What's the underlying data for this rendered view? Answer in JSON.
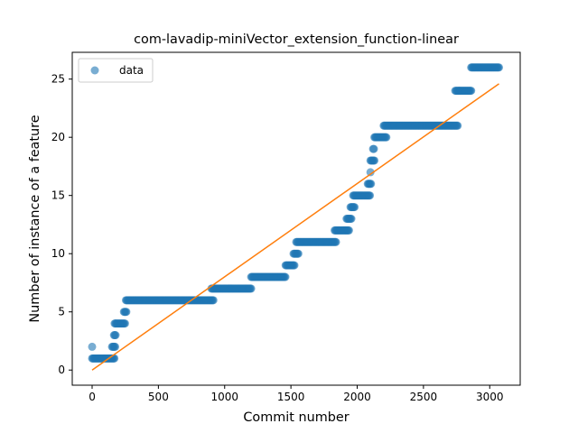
{
  "chart_data": {
    "type": "scatter",
    "title": "com-lavadip-miniVector_extension_function-linear",
    "xlabel": "Commit number",
    "ylabel": "Number of instance of a feature",
    "xlim": [
      -150,
      3230
    ],
    "ylim": [
      -1.3,
      27.3
    ],
    "xticks": [
      0,
      500,
      1000,
      1500,
      2000,
      2500,
      3000
    ],
    "yticks": [
      0,
      5,
      10,
      15,
      20,
      25
    ],
    "grid": false,
    "legend": {
      "placement": "upper left",
      "entries": [
        "data"
      ]
    },
    "colors": {
      "data": "#1f77b4",
      "fit": "#ff7f0e"
    },
    "series": [
      {
        "name": "data",
        "kind": "scatter",
        "segments": [
          {
            "x_start": 0,
            "x_end": 5,
            "y": 2
          },
          {
            "x_start": 0,
            "x_end": 170,
            "y": 1
          },
          {
            "x_start": 150,
            "x_end": 175,
            "y": 2
          },
          {
            "x_start": 165,
            "x_end": 180,
            "y": 3
          },
          {
            "x_start": 170,
            "x_end": 250,
            "y": 4
          },
          {
            "x_start": 240,
            "x_end": 260,
            "y": 5
          },
          {
            "x_start": 255,
            "x_end": 920,
            "y": 6
          },
          {
            "x_start": 900,
            "x_end": 1200,
            "y": 7
          },
          {
            "x_start": 1200,
            "x_end": 1460,
            "y": 8
          },
          {
            "x_start": 1460,
            "x_end": 1530,
            "y": 9
          },
          {
            "x_start": 1520,
            "x_end": 1560,
            "y": 10
          },
          {
            "x_start": 1540,
            "x_end": 1840,
            "y": 11
          },
          {
            "x_start": 1830,
            "x_end": 1940,
            "y": 12
          },
          {
            "x_start": 1920,
            "x_end": 1960,
            "y": 13
          },
          {
            "x_start": 1950,
            "x_end": 1980,
            "y": 14
          },
          {
            "x_start": 1970,
            "x_end": 2100,
            "y": 15
          },
          {
            "x_start": 2080,
            "x_end": 2105,
            "y": 16
          },
          {
            "x_start": 2100,
            "x_end": 2105,
            "y": 17
          },
          {
            "x_start": 2100,
            "x_end": 2130,
            "y": 18
          },
          {
            "x_start": 2120,
            "x_end": 2130,
            "y": 19
          },
          {
            "x_start": 2130,
            "x_end": 2220,
            "y": 20
          },
          {
            "x_start": 2200,
            "x_end": 2760,
            "y": 21
          },
          {
            "x_start": 2740,
            "x_end": 2860,
            "y": 24
          },
          {
            "x_start": 2860,
            "x_end": 3070,
            "y": 26
          }
        ]
      },
      {
        "name": "",
        "kind": "line",
        "x": [
          0,
          3070
        ],
        "y": [
          0,
          24.6
        ]
      }
    ]
  }
}
